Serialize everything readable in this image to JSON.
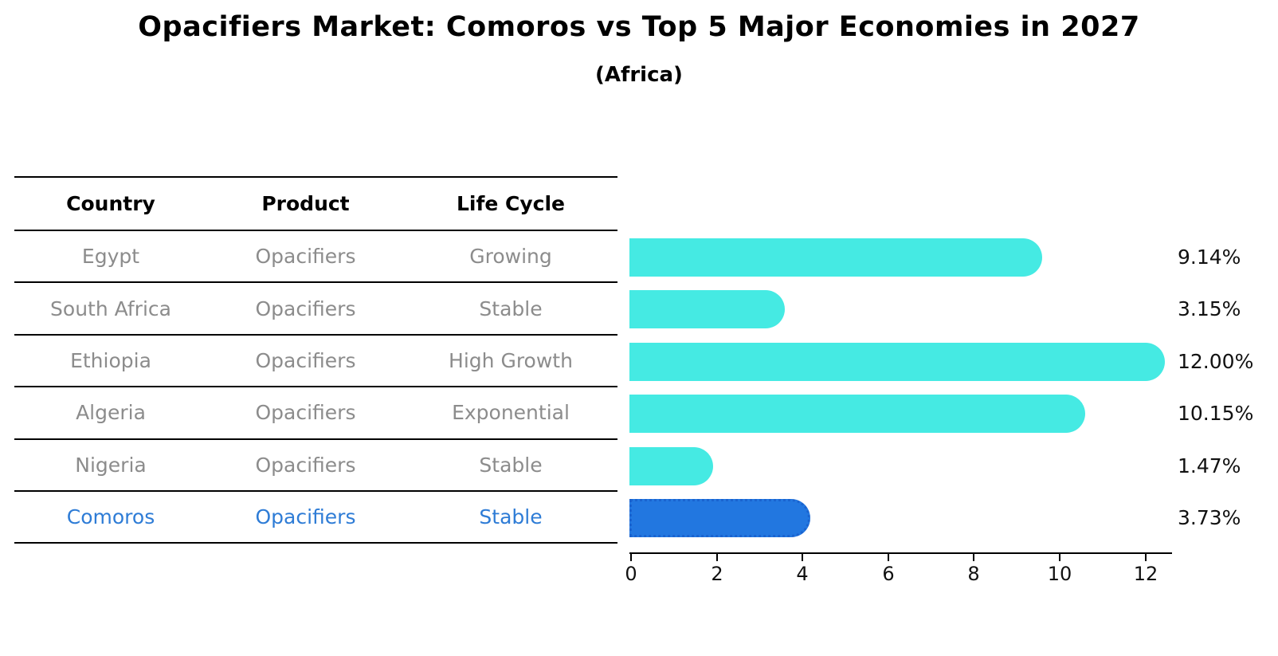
{
  "title": "Opacifiers Market: Comoros vs Top 5 Major Economies in 2027",
  "subtitle": "(Africa)",
  "table": {
    "headers": [
      "Country",
      "Product",
      "Life Cycle"
    ],
    "rows": [
      {
        "country": "Egypt",
        "product": "Opacifiers",
        "life_cycle": "Growing"
      },
      {
        "country": "South Africa",
        "product": "Opacifiers",
        "life_cycle": "Stable"
      },
      {
        "country": "Ethiopia",
        "product": "Opacifiers",
        "life_cycle": "High Growth"
      },
      {
        "country": "Algeria",
        "product": "Opacifiers",
        "life_cycle": "Exponential"
      },
      {
        "country": "Nigeria",
        "product": "Opacifiers",
        "life_cycle": "Stable"
      },
      {
        "country": "Comoros",
        "product": "Opacifiers",
        "life_cycle": "Stable"
      }
    ]
  },
  "chart_data": {
    "type": "bar",
    "orientation": "horizontal",
    "title": "Opacifiers Market: Comoros vs Top 5 Major Economies in 2027",
    "subtitle": "(Africa)",
    "categories": [
      "Egypt",
      "South Africa",
      "Ethiopia",
      "Algeria",
      "Nigeria",
      "Comoros"
    ],
    "values": [
      9.14,
      3.15,
      12.0,
      10.15,
      1.47,
      3.73
    ],
    "value_labels": [
      "9.14%",
      "3.15%",
      "12.00%",
      "10.15%",
      "1.47%",
      "3.73%"
    ],
    "xticks": [
      0,
      2,
      4,
      6,
      8,
      10,
      12
    ],
    "xlim": [
      0,
      12.6
    ],
    "grid": false,
    "legend": "none",
    "highlight_index": 5,
    "bar_color": "#45eae3",
    "highlight_bar_color": "#2277e0",
    "highlight_text_color": "#2e7cd6",
    "table_text_color": "#8c8c8c"
  }
}
